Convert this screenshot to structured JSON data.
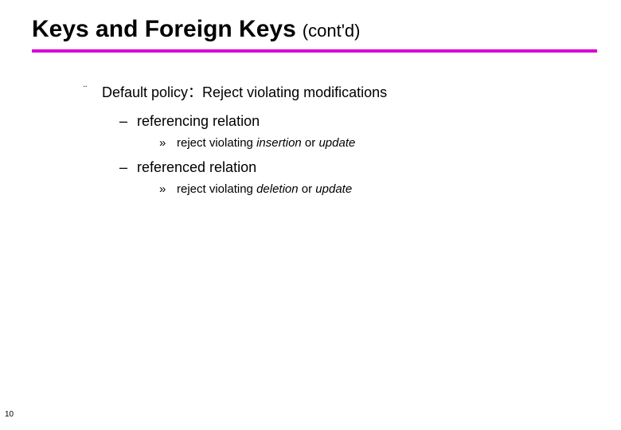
{
  "title": {
    "main": "Keys and Foreign Keys",
    "sub": "(cont'd)"
  },
  "rule_color": "#d700d7",
  "bullets": {
    "lvl1_mark": "¨",
    "lvl2_mark": "–",
    "lvl3_mark": "»"
  },
  "content": {
    "p1": "Default policy：Reject violating modifications",
    "s1": "referencing relation",
    "s1d_pre": "reject violating ",
    "s1d_i1": "insertion",
    "s1d_mid": " or ",
    "s1d_i2": "update",
    "s2": "referenced relation",
    "s2d_pre": "reject violating ",
    "s2d_i1": "deletion",
    "s2d_mid": " or ",
    "s2d_i2": "update"
  },
  "page_number": "10"
}
